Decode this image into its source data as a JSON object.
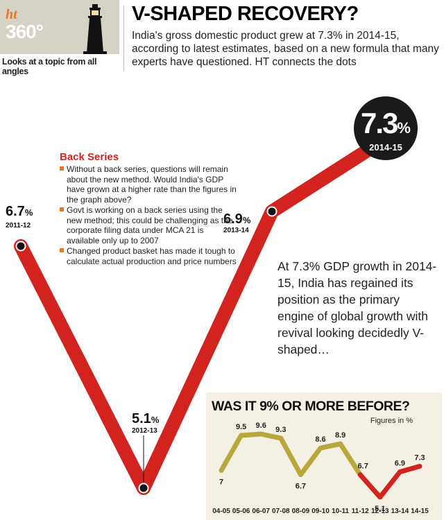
{
  "header": {
    "logo_ht": "ht",
    "logo_360": "360°",
    "tagline": "Looks at a topic from all angles",
    "title": "V-SHAPED RECOVERY?",
    "subtitle": "India's gross domestic product grew at 7.3% in 2014-15, according to latest estimates, based on a new formula that many experts have questioned. HT connects the dots"
  },
  "back_series": {
    "title": "Back Series",
    "items": [
      "Without a back series, questions will remain about the new method. Would India's GDP have grown at a higher rate than the figures in the graph above?",
      "Govt is working on a back series using the new method; this could be challenging as the corporate filing data under MCA 21 is available only up to 2007",
      "Changed product basket has made it tough to calculate actual production and price numbers"
    ]
  },
  "callout": "At 7.3% GDP growth in 2014-15, India has regained its position as the primary engine of global growth with revival looking decidedly V-shaped…",
  "colors": {
    "red": "#d2231f",
    "olive": "#b8a73a",
    "orange": "#e8762a",
    "bubble": "#1a1a1a"
  },
  "chart_data": [
    {
      "type": "line",
      "title": "",
      "unit": "%",
      "categories": [
        "2011-12",
        "2012-13",
        "2013-14",
        "2014-15"
      ],
      "values": [
        6.7,
        5.1,
        6.9,
        7.3
      ],
      "value_labels": [
        "6.7",
        "5.1",
        "6.9",
        "7.3"
      ]
    },
    {
      "type": "line",
      "title": "WAS IT 9% OR MORE BEFORE?",
      "subtitle": "Figures in %",
      "categories": [
        "04-05",
        "05-06",
        "06-07",
        "07-08",
        "08-09",
        "09-10",
        "10-11",
        "11-12",
        "12-13",
        "13-14",
        "14-15"
      ],
      "series": [
        {
          "values": [
            7,
            9.5,
            9.6,
            9.3,
            6.7,
            8.6,
            8.9,
            6.7,
            null,
            null,
            null
          ]
        },
        {
          "values": [
            null,
            null,
            null,
            null,
            null,
            null,
            null,
            6.7,
            5.1,
            6.9,
            7.3
          ]
        }
      ],
      "value_labels": [
        "7",
        "9.5",
        "9.6",
        "9.3",
        "6.7",
        "8.6",
        "8.9",
        "6.7",
        "5.1",
        "6.9",
        "7.3"
      ]
    }
  ]
}
